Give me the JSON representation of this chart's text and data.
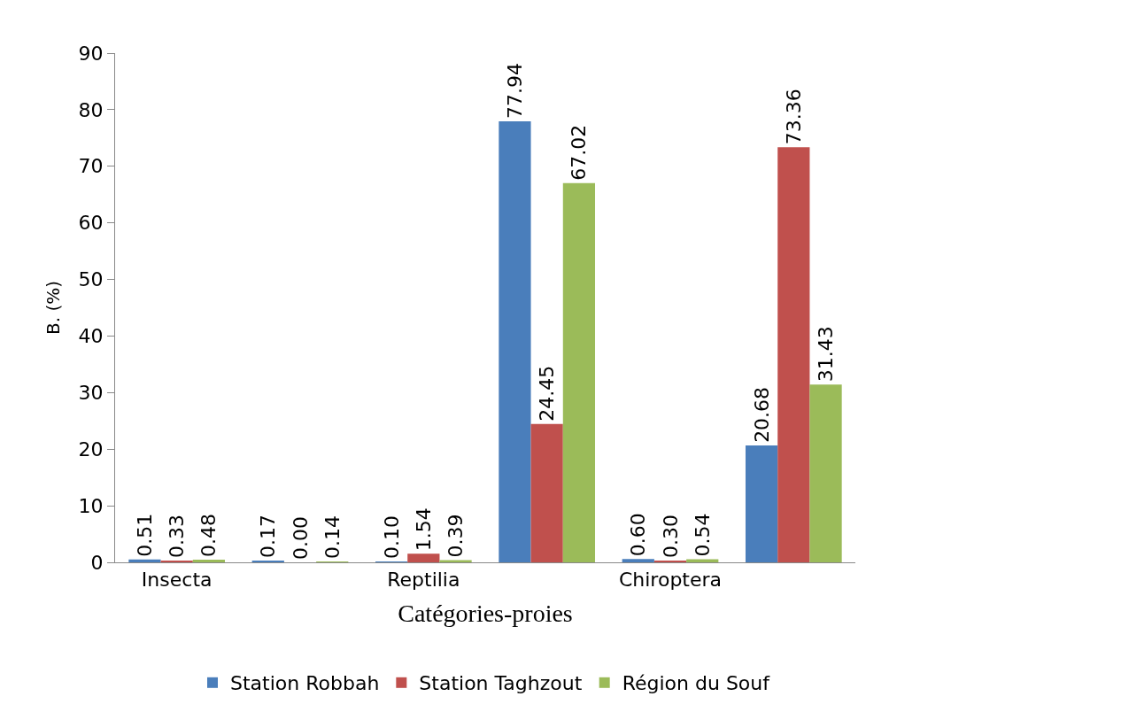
{
  "chart_data": {
    "type": "bar",
    "xlabel": "Catégories-proies",
    "ylabel": "B. (%)",
    "categories": [
      "Insecta",
      null,
      "Reptilia",
      null,
      "Chiroptera",
      null
    ],
    "ylim": [
      0,
      90
    ],
    "yticks": [
      0,
      10,
      20,
      30,
      40,
      50,
      60,
      70,
      80,
      90
    ],
    "legend": "bottom",
    "series": [
      {
        "name": "Station Robbah",
        "color": "#4a7ebb",
        "values": [
          0.51,
          0.17,
          0.1,
          77.94,
          0.6,
          20.68
        ],
        "value_labels": [
          "0.51",
          "0.17",
          "0.10",
          "77.94",
          "0.60",
          "20.68"
        ]
      },
      {
        "name": "Station Taghzout",
        "color": "#c0504d",
        "values": [
          0.33,
          0.0,
          1.54,
          24.45,
          0.3,
          73.36
        ],
        "value_labels": [
          "0.33",
          "0.00",
          "1.54",
          "24.45",
          "0.30",
          "73.36"
        ]
      },
      {
        "name": "Région du Souf",
        "color": "#9bbb59",
        "values": [
          0.48,
          0.14,
          0.39,
          67.02,
          0.54,
          31.43
        ],
        "value_labels": [
          "0.48",
          "0.14",
          "0.39",
          "67.02",
          "0.54",
          "31.43"
        ]
      }
    ]
  }
}
